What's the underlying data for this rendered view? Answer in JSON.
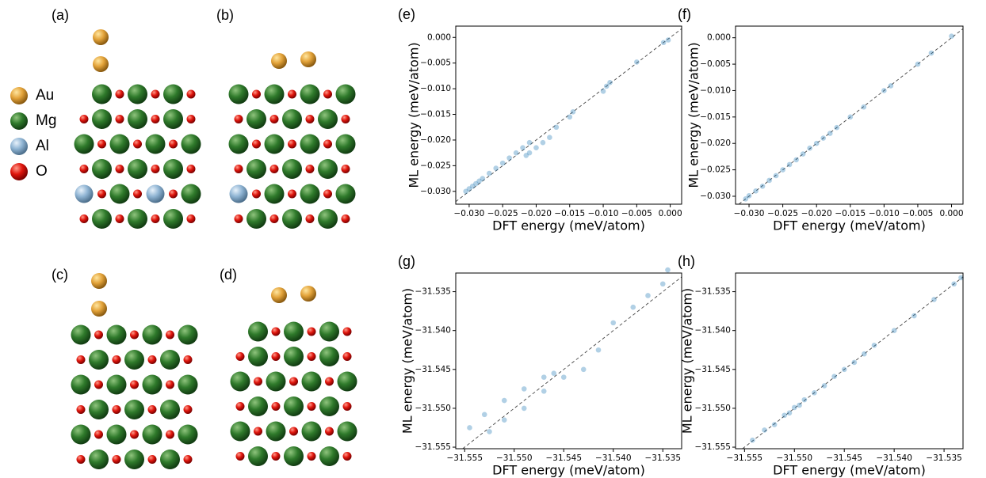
{
  "panels": [
    {
      "label": "(a)"
    },
    {
      "label": "(b)"
    },
    {
      "label": "(c)"
    },
    {
      "label": "(d)"
    }
  ],
  "legend": [
    {
      "label": "Au"
    },
    {
      "label": "Mg"
    },
    {
      "label": "Al"
    },
    {
      "label": "O"
    }
  ],
  "chart_data": [
    {
      "type": "scatter",
      "panel": "(e)",
      "xlabel": "DFT energy (meV/atom)",
      "ylabel": "ML energy (meV/atom)",
      "color": "#1f77b4",
      "xlim": [
        -0.032,
        0.0017
      ],
      "ylim": [
        -0.0325,
        0.0022
      ],
      "xticks": [
        {
          "value": -0.03,
          "label": "−0.030"
        },
        {
          "value": -0.025,
          "label": "−0.025"
        },
        {
          "value": -0.02,
          "label": "−0.020"
        },
        {
          "value": -0.015,
          "label": "−0.015"
        },
        {
          "value": -0.01,
          "label": "−0.010"
        },
        {
          "value": -0.005,
          "label": "−0.005"
        },
        {
          "value": 0,
          "label": "0.000"
        }
      ],
      "yticks": [
        {
          "value": -0.03,
          "label": "−0.030"
        },
        {
          "value": -0.025,
          "label": "−0.025"
        },
        {
          "value": -0.02,
          "label": "−0.020"
        },
        {
          "value": -0.015,
          "label": "−0.015"
        },
        {
          "value": -0.01,
          "label": "−0.010"
        },
        {
          "value": -0.005,
          "label": "−0.005"
        },
        {
          "value": 0,
          "label": "0.000"
        }
      ],
      "x": [
        -0.0305,
        -0.03,
        -0.0295,
        -0.029,
        -0.0285,
        -0.028,
        -0.027,
        -0.026,
        -0.025,
        -0.024,
        -0.023,
        -0.022,
        -0.021,
        -0.0215,
        -0.021,
        -0.02,
        -0.019,
        -0.018,
        -0.017,
        -0.015,
        -0.0145,
        -0.01,
        -0.0095,
        -0.009,
        -0.005,
        -0.001,
        -0.0003
      ],
      "y": [
        -0.03,
        -0.0295,
        -0.029,
        -0.0285,
        -0.028,
        -0.0275,
        -0.0265,
        -0.0255,
        -0.0245,
        -0.0235,
        -0.0225,
        -0.0215,
        -0.0205,
        -0.023,
        -0.0225,
        -0.0215,
        -0.0205,
        -0.0195,
        -0.0175,
        -0.0155,
        -0.0145,
        -0.0105,
        -0.0095,
        -0.0088,
        -0.0048,
        -0.001,
        -0.0005
      ]
    },
    {
      "type": "scatter",
      "panel": "(f)",
      "xlabel": "DFT energy (meV/atom)",
      "ylabel": "ML energy (meV/atom)",
      "color": "#1f77b4",
      "xlim": [
        -0.032,
        0.0017
      ],
      "ylim": [
        -0.0315,
        0.0022
      ],
      "xticks": [
        {
          "value": -0.03,
          "label": "−0.030"
        },
        {
          "value": -0.025,
          "label": "−0.025"
        },
        {
          "value": -0.02,
          "label": "−0.020"
        },
        {
          "value": -0.015,
          "label": "−0.015"
        },
        {
          "value": -0.01,
          "label": "−0.010"
        },
        {
          "value": -0.005,
          "label": "−0.005"
        },
        {
          "value": 0,
          "label": "0.000"
        }
      ],
      "yticks": [
        {
          "value": -0.03,
          "label": "−0.030"
        },
        {
          "value": -0.025,
          "label": "−0.025"
        },
        {
          "value": -0.02,
          "label": "−0.020"
        },
        {
          "value": -0.015,
          "label": "−0.015"
        },
        {
          "value": -0.01,
          "label": "−0.010"
        },
        {
          "value": -0.005,
          "label": "−0.005"
        },
        {
          "value": 0,
          "label": "0.000"
        }
      ],
      "x": [
        -0.0305,
        -0.03,
        -0.029,
        -0.028,
        -0.027,
        -0.026,
        -0.025,
        -0.024,
        -0.023,
        -0.022,
        -0.021,
        -0.02,
        -0.019,
        -0.018,
        -0.017,
        -0.015,
        -0.013,
        -0.01,
        -0.009,
        -0.005,
        -0.003,
        0
      ],
      "y": [
        -0.0305,
        -0.0299,
        -0.029,
        -0.0281,
        -0.027,
        -0.0261,
        -0.025,
        -0.024,
        -0.0231,
        -0.022,
        -0.0209,
        -0.02,
        -0.019,
        -0.0181,
        -0.017,
        -0.015,
        -0.0131,
        -0.01,
        -0.0091,
        -0.005,
        -0.0029,
        0.0003
      ]
    },
    {
      "type": "scatter",
      "panel": "(g)",
      "xlabel": "DFT energy (meV/atom)",
      "ylabel": "ML energy (meV/atom)",
      "color": "#1f77b4",
      "xlim": [
        -31.5559,
        -31.5331
      ],
      "ylim": [
        -31.5552,
        -31.5326
      ],
      "xticks": [
        {
          "value": -31.555,
          "label": "−31.555"
        },
        {
          "value": -31.55,
          "label": "−31.550"
        },
        {
          "value": -31.545,
          "label": "−31.545"
        },
        {
          "value": -31.54,
          "label": "−31.540"
        },
        {
          "value": -31.535,
          "label": "−31.535"
        }
      ],
      "yticks": [
        {
          "value": -31.555,
          "label": "−31.555"
        },
        {
          "value": -31.55,
          "label": "−31.550"
        },
        {
          "value": -31.545,
          "label": "−31.545"
        },
        {
          "value": -31.54,
          "label": "−31.540"
        },
        {
          "value": -31.535,
          "label": "−31.535"
        }
      ],
      "x": [
        -31.5545,
        -31.553,
        -31.551,
        -31.549,
        -31.547,
        -31.546,
        -31.5525,
        -31.551,
        -31.549,
        -31.547,
        -31.545,
        -31.543,
        -31.5415,
        -31.54,
        -31.538,
        -31.5365,
        -31.535,
        -31.5345
      ],
      "y": [
        -31.5525,
        -31.5508,
        -31.549,
        -31.5475,
        -31.546,
        -31.5455,
        -31.553,
        -31.5515,
        -31.55,
        -31.5478,
        -31.546,
        -31.545,
        -31.5425,
        -31.539,
        -31.537,
        -31.5355,
        -31.534,
        -31.5322
      ]
    },
    {
      "type": "scatter",
      "panel": "(h)",
      "xlabel": "DFT energy (meV/atom)",
      "ylabel": "ML energy (meV/atom)",
      "color": "#1f77b4",
      "xlim": [
        -31.5559,
        -31.5331
      ],
      "ylim": [
        -31.5552,
        -31.5326
      ],
      "xticks": [
        {
          "value": -31.555,
          "label": "−31.555"
        },
        {
          "value": -31.55,
          "label": "−31.550"
        },
        {
          "value": -31.545,
          "label": "−31.545"
        },
        {
          "value": -31.54,
          "label": "−31.540"
        },
        {
          "value": -31.535,
          "label": "−31.535"
        }
      ],
      "yticks": [
        {
          "value": -31.555,
          "label": "−31.555"
        },
        {
          "value": -31.55,
          "label": "−31.550"
        },
        {
          "value": -31.545,
          "label": "−31.545"
        },
        {
          "value": -31.54,
          "label": "−31.540"
        },
        {
          "value": -31.535,
          "label": "−31.535"
        }
      ],
      "x": [
        -31.5542,
        -31.553,
        -31.552,
        -31.551,
        -31.5505,
        -31.55,
        -31.5495,
        -31.549,
        -31.548,
        -31.547,
        -31.546,
        -31.545,
        -31.544,
        -31.543,
        -31.542,
        -31.54,
        -31.538,
        -31.536,
        -31.534,
        -31.5333
      ],
      "y": [
        -31.5541,
        -31.5528,
        -31.5521,
        -31.5509,
        -31.5506,
        -31.5499,
        -31.5496,
        -31.5489,
        -31.548,
        -31.5471,
        -31.5459,
        -31.545,
        -31.5441,
        -31.543,
        -31.5419,
        -31.54,
        -31.5381,
        -31.536,
        -31.534,
        -31.5332
      ]
    }
  ]
}
